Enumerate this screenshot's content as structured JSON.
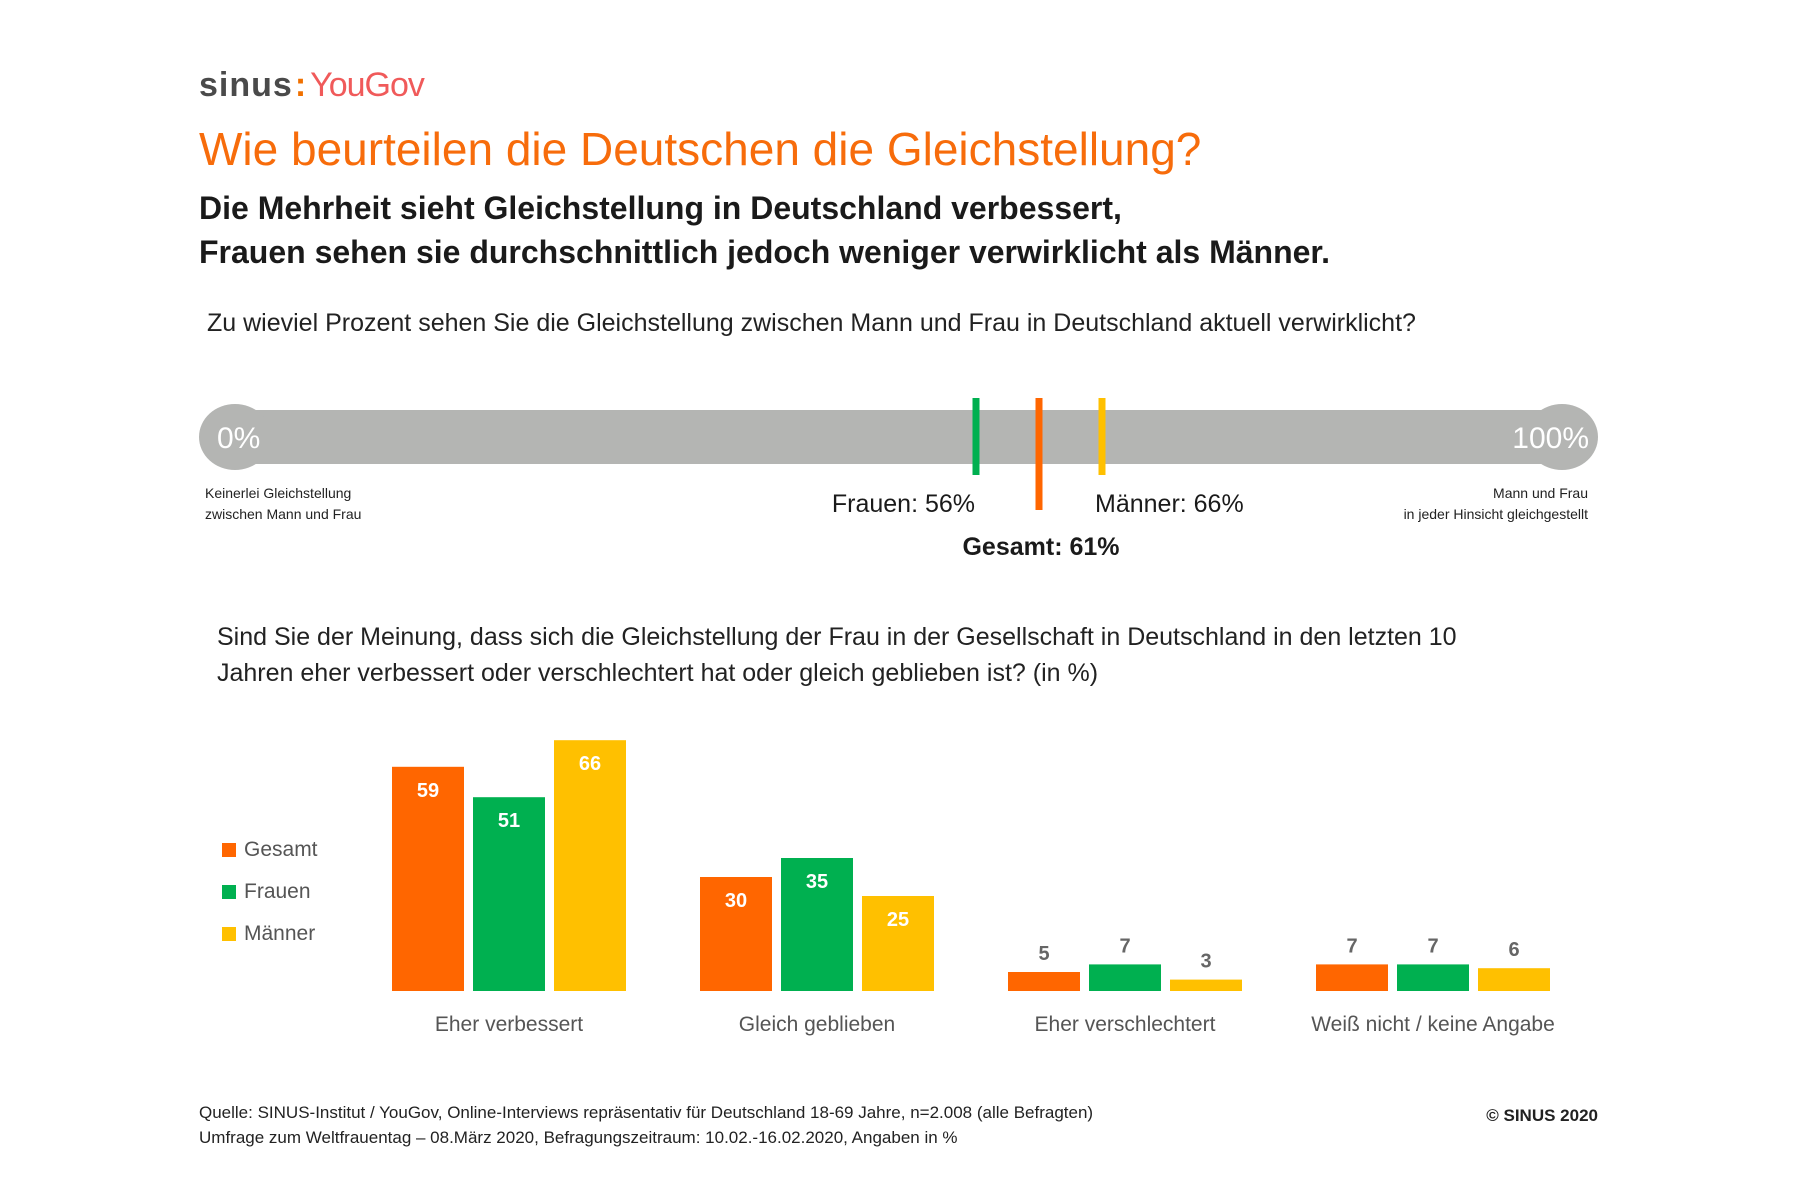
{
  "logo": {
    "sinus": "sinus",
    "yougov": "YouGov"
  },
  "title": "Wie beurteilen die Deutschen die Gleichstellung?",
  "subtitle": [
    "Die Mehrheit sieht Gleichstellung in Deutschland verbessert,",
    "Frauen sehen sie durchschnittlich jedoch weniger verwirklicht als Männer."
  ],
  "colors": {
    "gesamt": "#ff6600",
    "frauen": "#00b050",
    "maenner": "#ffc000",
    "track": "#b4b5b3",
    "title": "#f76c0b"
  },
  "chart_data": [
    {
      "type": "scale",
      "question": "Zu wieviel Prozent sehen Sie die Gleichstellung zwischen Mann und Frau in Deutschland aktuell verwirklicht?",
      "min_label": "0%",
      "max_label": "100%",
      "min_desc": [
        "Keinerlei Gleichstellung",
        "zwischen Mann und Frau"
      ],
      "max_desc": [
        "Mann und Frau",
        "in jeder Hinsicht gleichgestellt"
      ],
      "range": [
        0,
        100
      ],
      "markers": [
        {
          "name": "Frauen",
          "value": 56,
          "label": "Frauen: 56%"
        },
        {
          "name": "Gesamt",
          "value": 61,
          "label": "Gesamt: 61%"
        },
        {
          "name": "Männer",
          "value": 66,
          "label": "Männer: 66%"
        }
      ]
    },
    {
      "type": "bar",
      "question": [
        "Sind Sie der Meinung, dass sich die Gleichstellung der Frau in der Gesellschaft in Deutschland in den letzten 10",
        "Jahren eher verbessert oder verschlechtert hat oder gleich geblieben ist? (in %)"
      ],
      "categories": [
        "Eher verbessert",
        "Gleich geblieben",
        "Eher verschlechtert",
        "Weiß nicht / keine Angabe"
      ],
      "series": [
        {
          "name": "Gesamt",
          "values": [
            59,
            30,
            5,
            7
          ]
        },
        {
          "name": "Frauen",
          "values": [
            51,
            35,
            7,
            7
          ]
        },
        {
          "name": "Männer",
          "values": [
            66,
            25,
            3,
            6
          ]
        }
      ],
      "legend": "left",
      "grid": false
    }
  ],
  "footer": {
    "source": "Quelle: SINUS-Institut / YouGov, Online-Interviews repräsentativ für Deutschland 18-69 Jahre, n=2.008 (alle Befragten)",
    "survey": "Umfrage zum Weltfrauentag – 08.März 2020, Befragungszeitraum: 10.02.-16.02.2020, Angaben in %",
    "copyright": "© SINUS 2020"
  }
}
